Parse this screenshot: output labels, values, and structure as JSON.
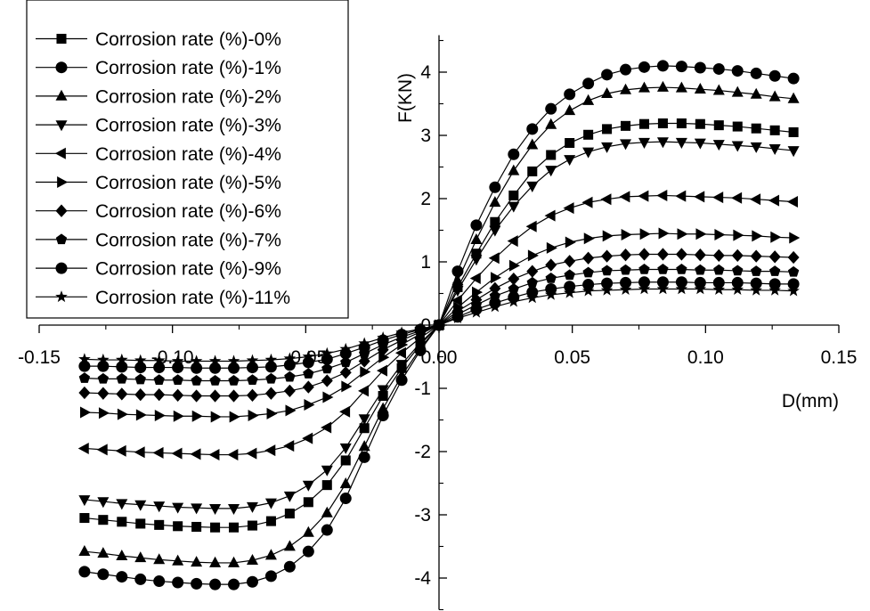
{
  "chart_data": {
    "type": "line",
    "title": "",
    "xlabel": "D(mm)",
    "ylabel": "F(KN)",
    "xlim": [
      -0.15,
      0.15
    ],
    "ylim": [
      -4.5,
      4.5
    ],
    "x_ticks": [
      "-0.15",
      "-0.10",
      "-0.05",
      "0.00",
      "0.05",
      "0.10",
      "0.15"
    ],
    "y_ticks": [
      "-4",
      "-3",
      "-2",
      "-1",
      "0",
      "1",
      "2",
      "3",
      "4"
    ],
    "grid": false,
    "legend_position": "top-left",
    "x": [
      -0.133,
      -0.126,
      -0.119,
      -0.112,
      -0.105,
      -0.098,
      -0.091,
      -0.084,
      -0.077,
      -0.07,
      -0.063,
      -0.056,
      -0.049,
      -0.042,
      -0.035,
      -0.028,
      -0.021,
      -0.014,
      -0.007,
      0.0,
      0.007,
      0.014,
      0.021,
      0.028,
      0.035,
      0.042,
      0.049,
      0.056,
      0.063,
      0.07,
      0.077,
      0.084,
      0.091,
      0.098,
      0.105,
      0.112,
      0.119,
      0.126,
      0.133
    ],
    "series": [
      {
        "name": "Corrosion rate (%)-0%",
        "marker": "square",
        "peak": 3.2,
        "values": [
          -3.05,
          -3.08,
          -3.11,
          -3.14,
          -3.16,
          -3.18,
          -3.19,
          -3.2,
          -3.2,
          -3.17,
          -3.1,
          -2.98,
          -2.8,
          -2.53,
          -2.14,
          -1.63,
          -1.12,
          -0.68,
          -0.31,
          0.0,
          0.6,
          1.13,
          1.63,
          2.05,
          2.43,
          2.69,
          2.88,
          3.01,
          3.1,
          3.15,
          3.18,
          3.19,
          3.19,
          3.18,
          3.16,
          3.14,
          3.11,
          3.08,
          3.05
        ]
      },
      {
        "name": "Corrosion rate (%)-1%",
        "marker": "circle",
        "peak": 4.1,
        "values": [
          -3.9,
          -3.94,
          -3.98,
          -4.02,
          -4.05,
          -4.07,
          -4.09,
          -4.1,
          -4.1,
          -4.06,
          -3.97,
          -3.82,
          -3.58,
          -3.24,
          -2.74,
          -2.09,
          -1.43,
          -0.87,
          -0.4,
          0.0,
          0.85,
          1.58,
          2.18,
          2.7,
          3.1,
          3.42,
          3.65,
          3.82,
          3.96,
          4.04,
          4.08,
          4.1,
          4.09,
          4.07,
          4.05,
          4.02,
          3.98,
          3.94,
          3.9
        ]
      },
      {
        "name": "Corrosion rate (%)-2%",
        "marker": "triangle-up",
        "peak": 3.76,
        "values": [
          -3.58,
          -3.61,
          -3.65,
          -3.68,
          -3.71,
          -3.73,
          -3.75,
          -3.76,
          -3.76,
          -3.72,
          -3.64,
          -3.5,
          -3.28,
          -2.97,
          -2.51,
          -1.92,
          -1.32,
          -0.8,
          -0.37,
          0.0,
          0.7,
          1.35,
          1.94,
          2.44,
          2.85,
          3.17,
          3.39,
          3.55,
          3.66,
          3.72,
          3.75,
          3.76,
          3.75,
          3.73,
          3.71,
          3.68,
          3.65,
          3.61,
          3.58
        ]
      },
      {
        "name": "Corrosion rate (%)-3%",
        "marker": "triangle-down",
        "peak": 2.9,
        "values": [
          -2.76,
          -2.79,
          -2.82,
          -2.84,
          -2.86,
          -2.88,
          -2.89,
          -2.9,
          -2.9,
          -2.87,
          -2.81,
          -2.7,
          -2.53,
          -2.29,
          -1.94,
          -1.48,
          -1.02,
          -0.62,
          -0.28,
          0.0,
          0.55,
          1.04,
          1.5,
          1.88,
          2.2,
          2.45,
          2.62,
          2.74,
          2.82,
          2.87,
          2.89,
          2.9,
          2.89,
          2.88,
          2.86,
          2.84,
          2.82,
          2.79,
          2.76
        ]
      },
      {
        "name": "Corrosion rate (%)-4%",
        "marker": "triangle-left",
        "peak": 2.05,
        "values": [
          -1.95,
          -1.97,
          -1.99,
          -2.01,
          -2.02,
          -2.03,
          -2.04,
          -2.05,
          -2.05,
          -2.03,
          -1.98,
          -1.91,
          -1.79,
          -1.62,
          -1.37,
          -1.04,
          -0.72,
          -0.44,
          -0.2,
          0.0,
          0.39,
          0.74,
          1.06,
          1.33,
          1.56,
          1.73,
          1.85,
          1.94,
          1.99,
          2.03,
          2.04,
          2.05,
          2.04,
          2.03,
          2.02,
          2.01,
          1.99,
          1.97,
          1.95
        ]
      },
      {
        "name": "Corrosion rate (%)-5%",
        "marker": "triangle-right",
        "peak": 1.45,
        "values": [
          -1.38,
          -1.39,
          -1.41,
          -1.42,
          -1.43,
          -1.44,
          -1.44,
          -1.45,
          -1.45,
          -1.43,
          -1.4,
          -1.35,
          -1.26,
          -1.14,
          -0.97,
          -0.74,
          -0.51,
          -0.31,
          -0.14,
          0.0,
          0.28,
          0.52,
          0.75,
          0.94,
          1.1,
          1.22,
          1.31,
          1.37,
          1.41,
          1.43,
          1.44,
          1.45,
          1.44,
          1.44,
          1.43,
          1.42,
          1.41,
          1.39,
          1.38
        ]
      },
      {
        "name": "Corrosion rate (%)-6%",
        "marker": "diamond",
        "peak": 1.12,
        "values": [
          -1.07,
          -1.08,
          -1.09,
          -1.1,
          -1.1,
          -1.11,
          -1.12,
          -1.12,
          -1.12,
          -1.11,
          -1.08,
          -1.04,
          -0.98,
          -0.88,
          -0.75,
          -0.57,
          -0.39,
          -0.24,
          -0.11,
          0.0,
          0.22,
          0.4,
          0.58,
          0.73,
          0.85,
          0.95,
          1.01,
          1.06,
          1.09,
          1.11,
          1.12,
          1.12,
          1.12,
          1.11,
          1.1,
          1.1,
          1.09,
          1.08,
          1.07
        ]
      },
      {
        "name": "Corrosion rate (%)-7%",
        "marker": "pentagon",
        "peak": 0.88,
        "values": [
          -0.84,
          -0.85,
          -0.85,
          -0.86,
          -0.87,
          -0.87,
          -0.88,
          -0.88,
          -0.88,
          -0.87,
          -0.85,
          -0.82,
          -0.77,
          -0.69,
          -0.59,
          -0.45,
          -0.31,
          -0.19,
          -0.09,
          0.0,
          0.17,
          0.32,
          0.46,
          0.57,
          0.67,
          0.74,
          0.79,
          0.83,
          0.86,
          0.87,
          0.88,
          0.88,
          0.88,
          0.87,
          0.87,
          0.86,
          0.85,
          0.85,
          0.84
        ]
      },
      {
        "name": "Corrosion rate (%)-9%",
        "marker": "circle",
        "peak": 0.68,
        "values": [
          -0.65,
          -0.65,
          -0.66,
          -0.67,
          -0.67,
          -0.67,
          -0.68,
          -0.68,
          -0.68,
          -0.67,
          -0.66,
          -0.63,
          -0.59,
          -0.54,
          -0.45,
          -0.35,
          -0.24,
          -0.15,
          -0.07,
          0.0,
          0.13,
          0.25,
          0.35,
          0.44,
          0.52,
          0.57,
          0.61,
          0.64,
          0.66,
          0.67,
          0.68,
          0.68,
          0.68,
          0.67,
          0.67,
          0.67,
          0.66,
          0.65,
          0.65
        ]
      },
      {
        "name": "Corrosion rate (%)-11%",
        "marker": "star",
        "peak": 0.57,
        "values": [
          -0.54,
          -0.55,
          -0.55,
          -0.56,
          -0.56,
          -0.57,
          -0.57,
          -0.57,
          -0.57,
          -0.56,
          -0.55,
          -0.53,
          -0.5,
          -0.45,
          -0.38,
          -0.29,
          -0.2,
          -0.12,
          -0.06,
          0.0,
          0.11,
          0.2,
          0.29,
          0.37,
          0.43,
          0.48,
          0.51,
          0.54,
          0.55,
          0.56,
          0.57,
          0.57,
          0.57,
          0.57,
          0.56,
          0.56,
          0.55,
          0.55,
          0.54
        ]
      }
    ]
  }
}
